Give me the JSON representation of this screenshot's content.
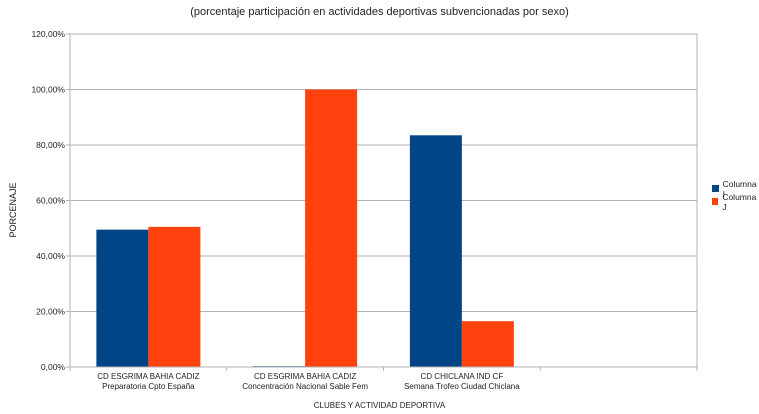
{
  "chart_data": {
    "type": "bar",
    "title": "(porcentaje participación en actividades deportivas subvencionadas por sexo)",
    "xlabel": "CLUBES Y ACTIVIDAD DEPORTIVA",
    "ylabel": "PORCENAJE",
    "ylim": [
      0,
      120
    ],
    "yticks": [
      "0,00%",
      "20,00%",
      "40,00%",
      "60,00%",
      "80,00%",
      "100,00%",
      "120,00%"
    ],
    "grid": true,
    "legend_position": "right",
    "categories": [
      [
        "CD ESGRIMA BAHIA CADIZ",
        "Preparatoria Cpto España"
      ],
      [
        "CD ESGRIMA BAHIA CADIZ",
        "Concentración Nacional Sable Fem"
      ],
      [
        "CD CHICLANA IND CF",
        "Semana Trofeo Ciudad Chiclana"
      ],
      [
        "",
        ""
      ]
    ],
    "series": [
      {
        "name": "Columna I",
        "color": "#004586",
        "values": [
          49.5,
          0.3,
          83.5,
          null
        ]
      },
      {
        "name": "Columna J",
        "color": "#ff420e",
        "values": [
          50.5,
          100,
          16.5,
          null
        ]
      }
    ]
  }
}
